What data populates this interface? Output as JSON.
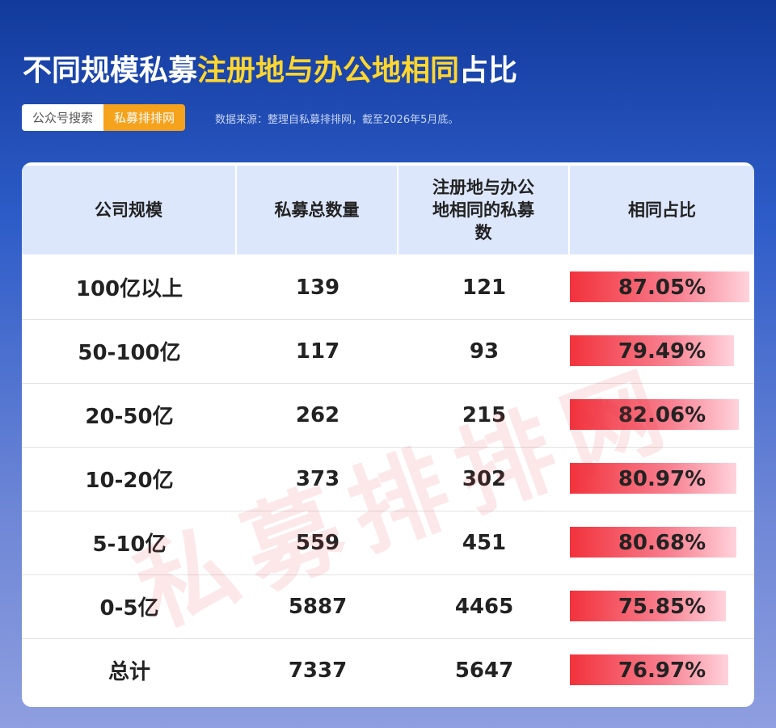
{
  "header": {
    "title_parts": [
      "不同规模私募",
      "注册地与办公地相同",
      "占比"
    ],
    "tag_search": "公众号搜索",
    "tag_brand": "私募排排网",
    "source": "数据来源：整理自私募排排网，截至2026年5月底。"
  },
  "watermark": "私募排排网",
  "table": {
    "columns": [
      "公司规模",
      "私募总数量",
      "注册地与办公地相同的私募数",
      "相同占比"
    ],
    "rows": [
      [
        "100亿以上",
        139,
        121,
        {
          "value": 87.05,
          "label": "87.05%"
        }
      ],
      [
        "50-100亿",
        117,
        93,
        {
          "value": 79.49,
          "label": "79.49%"
        }
      ],
      [
        "20-50亿",
        262,
        215,
        {
          "value": 82.06,
          "label": "82.06%"
        }
      ],
      [
        "10-20亿",
        373,
        302,
        {
          "value": 80.97,
          "label": "80.97%"
        }
      ],
      [
        "5-10亿",
        559,
        451,
        {
          "value": 80.68,
          "label": "80.68%"
        }
      ],
      [
        "0-5亿",
        5887,
        4465,
        {
          "value": 75.85,
          "label": "75.85%"
        }
      ],
      [
        "总计",
        7337,
        5647,
        {
          "value": 76.97,
          "label": "76.97%"
        }
      ]
    ]
  }
}
